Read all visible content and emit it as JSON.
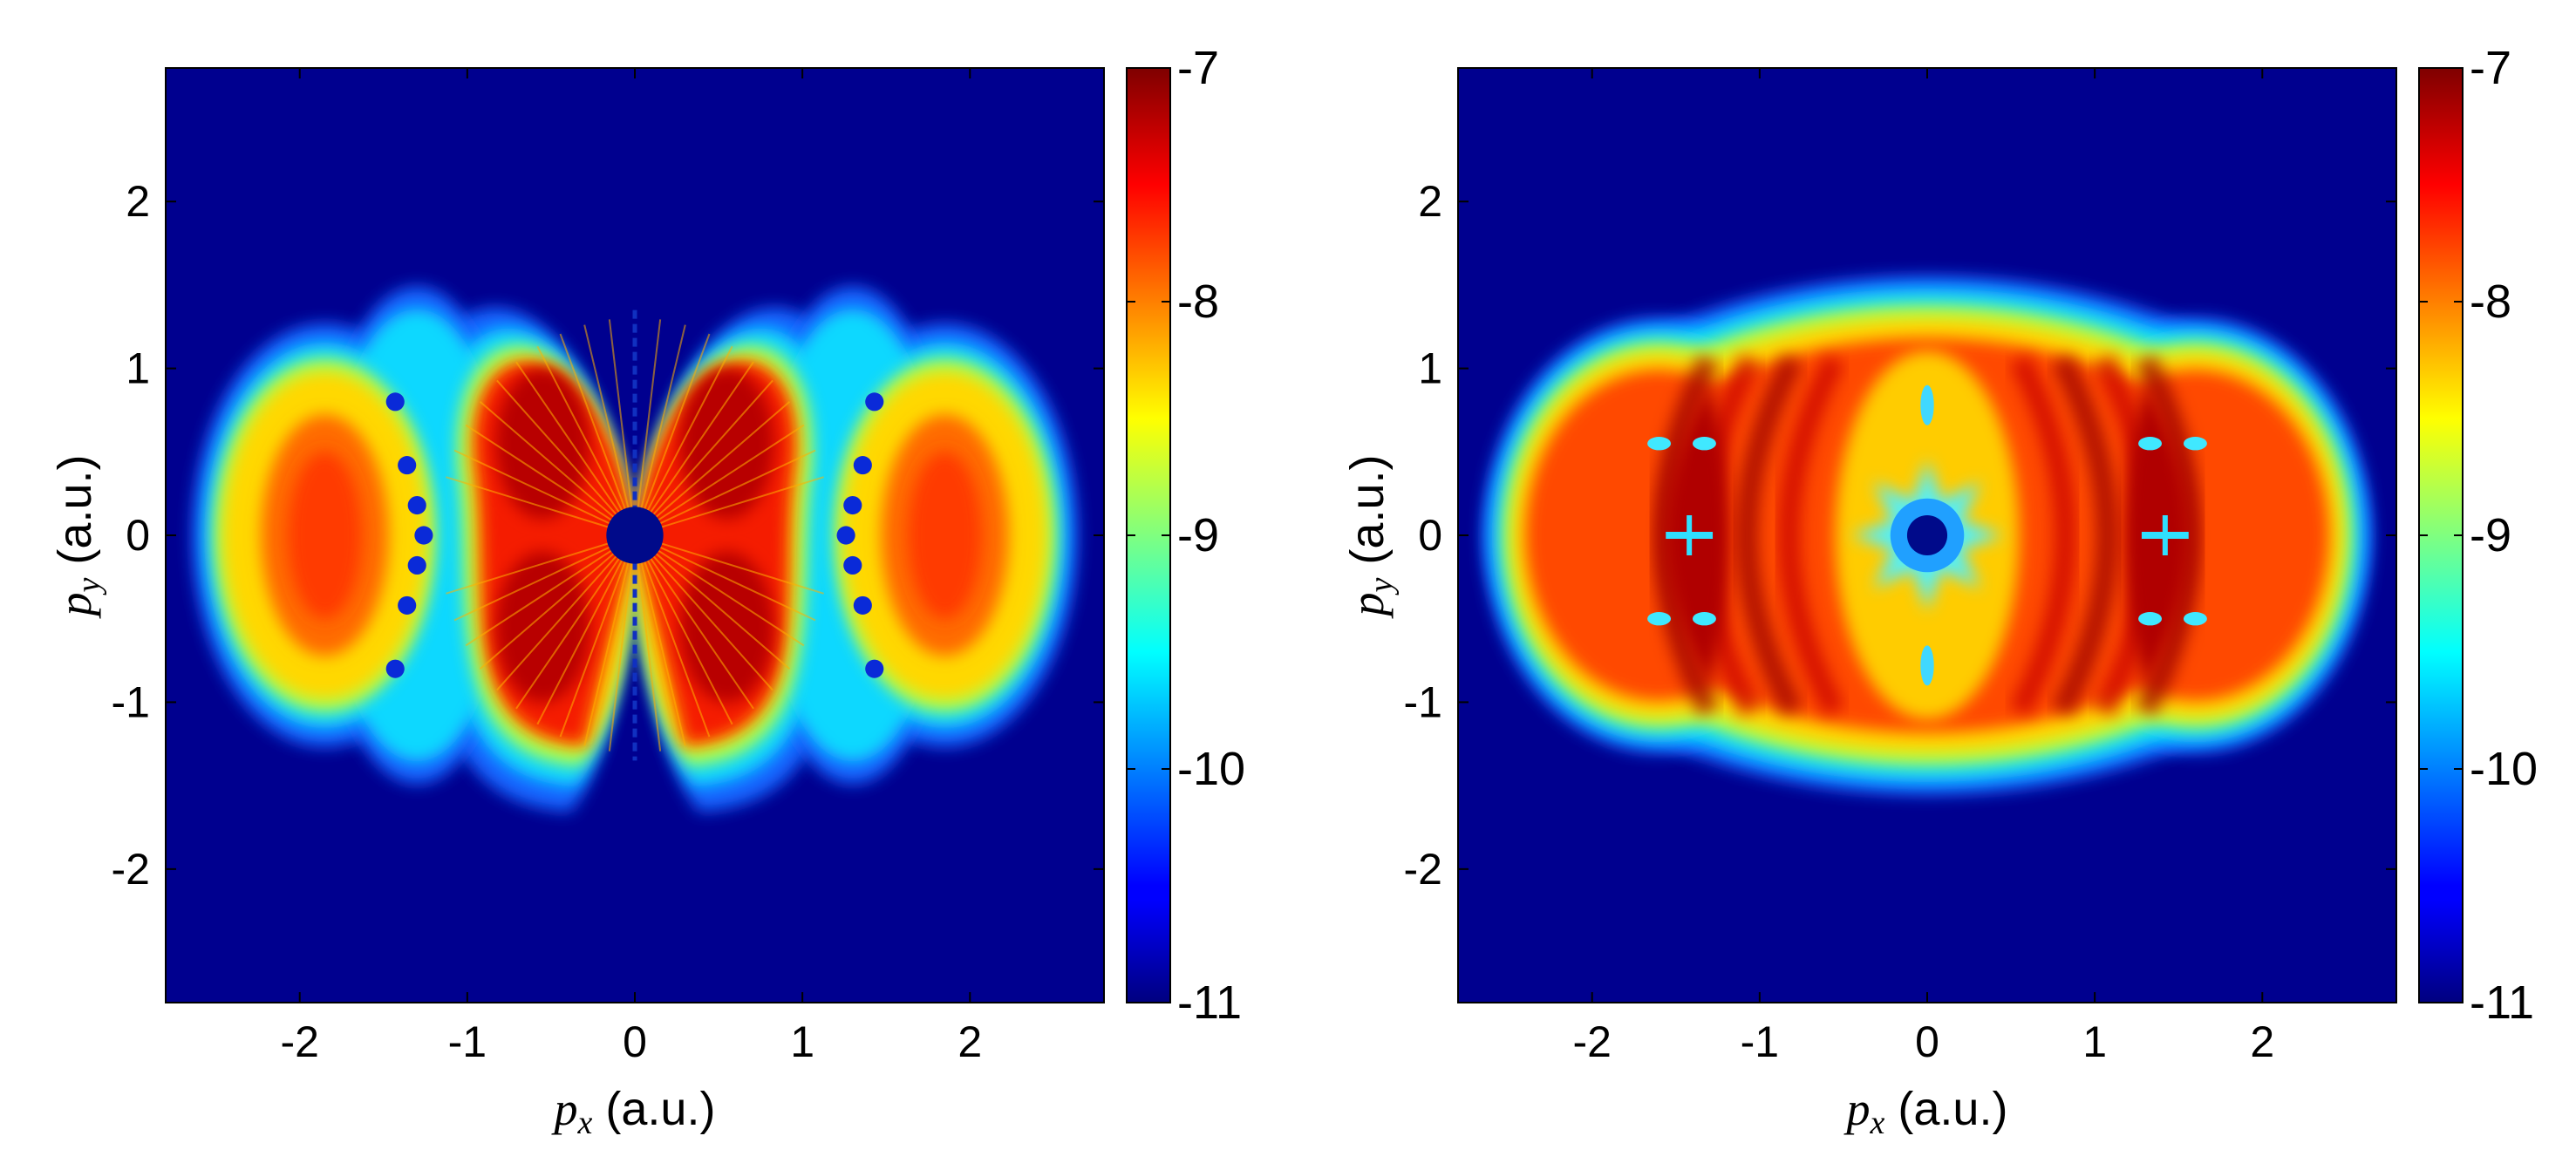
{
  "chart_data": [
    {
      "type": "heatmap",
      "panel": "left",
      "title": "",
      "xlabel_symbol": "p",
      "xlabel_sub": "x",
      "xlabel_unit": " (a.u.)",
      "ylabel_symbol": "p",
      "ylabel_sub": "y",
      "ylabel_unit": " (a.u.)",
      "xlim": [
        -2.8,
        2.8
      ],
      "ylim": [
        -2.8,
        2.8
      ],
      "xticks": [
        -2,
        -1,
        0,
        1,
        2
      ],
      "xtick_labels": [
        "-2",
        "-1",
        "0",
        "1",
        "2"
      ],
      "yticks": [
        2,
        1,
        0,
        -1,
        -2
      ],
      "ytick_labels": [
        "2",
        "1",
        "0",
        "-1",
        "-2"
      ],
      "colorbar": {
        "range": [
          -11,
          -7
        ],
        "ticks": [
          -7,
          -8,
          -9,
          -10,
          -11
        ],
        "tick_labels": [
          "-7",
          "-8",
          "-9",
          "-10",
          "-11"
        ],
        "colormap": "jet"
      },
      "structure": {
        "central_hole_radius": 0.17,
        "features": "two butterfly-shaped red lobes around origin, outer elliptical red lobes near px = ±1.9, chains of dark-blue minima near px = ±1.3, thin vertical interference line along px = 0"
      }
    },
    {
      "type": "heatmap",
      "panel": "right",
      "title": "",
      "xlabel_symbol": "p",
      "xlabel_sub": "x",
      "xlabel_unit": " (a.u.)",
      "ylabel_symbol": "p",
      "ylabel_sub": "y",
      "ylabel_unit": " (a.u.)",
      "xlim": [
        -2.8,
        2.8
      ],
      "ylim": [
        -2.8,
        2.8
      ],
      "xticks": [
        -2,
        -1,
        0,
        1,
        2
      ],
      "xtick_labels": [
        "-2",
        "-1",
        "0",
        "1",
        "2"
      ],
      "yticks": [
        2,
        1,
        0,
        -1,
        -2
      ],
      "ytick_labels": [
        "2",
        "1",
        "0",
        "-1",
        "-2"
      ],
      "colorbar": {
        "range": [
          -11,
          -7
        ],
        "ticks": [
          -7,
          -8,
          -9,
          -10,
          -11
        ],
        "tick_labels": [
          "-7",
          "-8",
          "-9",
          "-10",
          "-11"
        ],
        "colormap": "jet"
      },
      "structure": {
        "central_hole_radius": 0.12,
        "features": "broad oval distribution extending to px = ±2.6, concentric arc interference fringes, star-shaped cyan region around origin, small cross-shaped minima near px = ±1.4"
      }
    }
  ]
}
